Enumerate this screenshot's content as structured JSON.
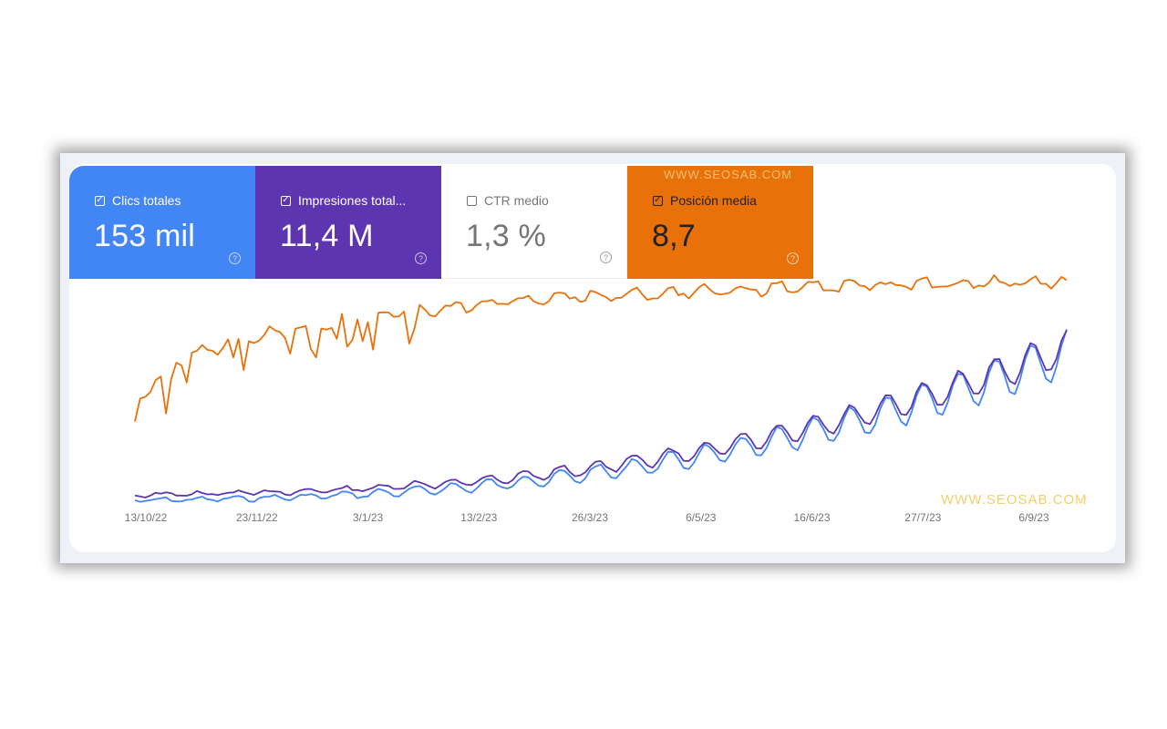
{
  "watermark": "WWW.SEOSAB.COM",
  "metrics": [
    {
      "id": "clicks",
      "label": "Clics totales",
      "value": "153 mil",
      "checked": true,
      "color": "#4285f4"
    },
    {
      "id": "impressions",
      "label": "Impresiones total...",
      "value": "11,4 M",
      "checked": true,
      "color": "#5e35b1"
    },
    {
      "id": "ctr",
      "label": "CTR medio",
      "value": "1,3 %",
      "checked": false,
      "color": "#ffffff"
    },
    {
      "id": "position",
      "label": "Posición media",
      "value": "8,7",
      "checked": true,
      "color": "#e8710a"
    }
  ],
  "chart_data": {
    "type": "line",
    "x_tick_labels": [
      "13/10/22",
      "23/11/22",
      "3/1/23",
      "13/2/23",
      "26/3/23",
      "6/5/23",
      "16/6/23",
      "27/7/23",
      "6/9/23"
    ],
    "series": [
      {
        "name": "Clics totales",
        "color": "#4285f4"
      },
      {
        "name": "Impresiones total...",
        "color": "#5e35b1"
      },
      {
        "name": "Posición media",
        "color": "#e8710a"
      }
    ]
  }
}
